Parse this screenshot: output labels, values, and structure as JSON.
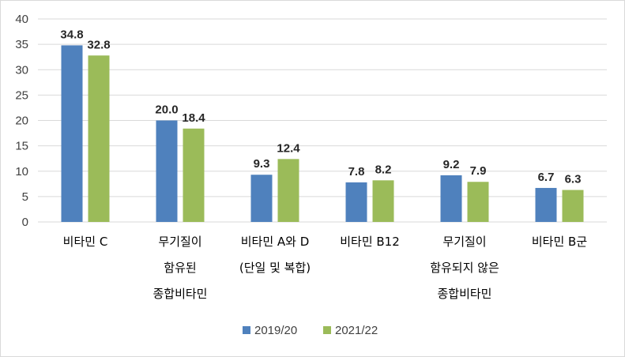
{
  "chart_data": {
    "type": "bar",
    "title": "",
    "xlabel": "",
    "ylabel": "",
    "ylim": [
      0,
      40
    ],
    "yticks": [
      0,
      5,
      10,
      15,
      20,
      25,
      30,
      35,
      40
    ],
    "grid": true,
    "legend_position": "bottom",
    "categories": [
      [
        "비타민 C"
      ],
      [
        "무기질이",
        "함유된",
        "종합비타민"
      ],
      [
        "비타민 A와 D",
        "(단일 및 복합)"
      ],
      [
        "비타민 B12"
      ],
      [
        "무기질이",
        "함유되지 않은",
        "종합비타민"
      ],
      [
        "비타민 B군"
      ]
    ],
    "series": [
      {
        "name": "2019/20",
        "color": "#4f81bd",
        "values": [
          34.8,
          20.0,
          9.3,
          7.8,
          9.2,
          6.7
        ],
        "labels": [
          "34.8",
          "20.0",
          "9.3",
          "7.8",
          "9.2",
          "6.7"
        ]
      },
      {
        "name": "2021/22",
        "color": "#9bbb59",
        "values": [
          32.8,
          18.4,
          12.4,
          8.2,
          7.9,
          6.3
        ],
        "labels": [
          "32.8",
          "18.4",
          "12.4",
          "8.2",
          "7.9",
          "6.3"
        ]
      }
    ]
  }
}
